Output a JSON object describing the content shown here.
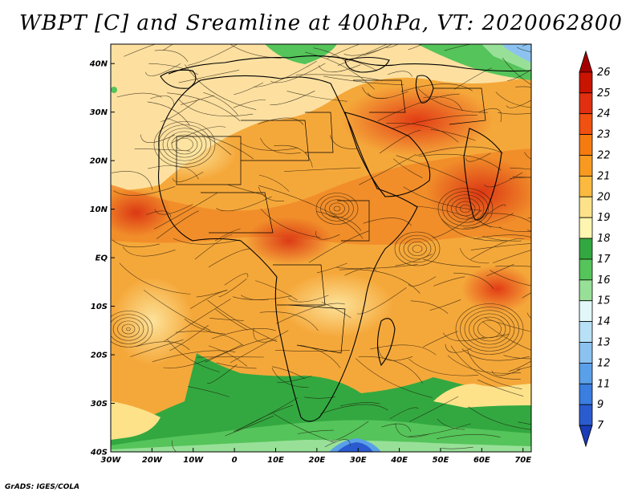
{
  "title": "WBPT [C] and Sreamline at 400hPa, VT: 2020062800",
  "credit": "GrADS: IGES/COLA",
  "map": {
    "lat_labels": [
      "40N",
      "30N",
      "20N",
      "10N",
      "EQ",
      "10S",
      "20S",
      "30S",
      "40S"
    ],
    "lon_labels": [
      "30W",
      "20W",
      "10W",
      "0",
      "10E",
      "20E",
      "30E",
      "40E",
      "50E",
      "60E",
      "70E"
    ],
    "lon_range": [
      -30,
      72
    ],
    "lat_range": [
      -40,
      44
    ]
  },
  "colorbar": {
    "labels": [
      "26",
      "25",
      "24",
      "23",
      "22",
      "21",
      "20",
      "19",
      "18",
      "17",
      "16",
      "15",
      "14",
      "13",
      "12",
      "11",
      "9",
      "7"
    ],
    "colors": [
      "#a50000",
      "#c81400",
      "#e03010",
      "#f05010",
      "#f57a10",
      "#f89a20",
      "#fbb940",
      "#fde28a",
      "#fdf5b0",
      "#33a840",
      "#55c45a",
      "#98e098",
      "#e2f8f8",
      "#b8e0f6",
      "#8cc2f0",
      "#5aa0e8",
      "#3a7ee0",
      "#2a5cd0",
      "#1a3cb8"
    ]
  },
  "legend_colors": {
    "cold": "#1a3cb8",
    "green": "#33a840",
    "pale": "#fde28a",
    "warm": "#f89a20",
    "hot": "#e03010"
  }
}
